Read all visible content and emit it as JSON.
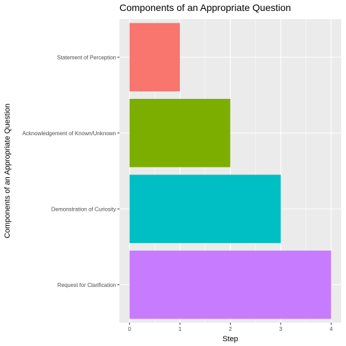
{
  "chart_data": {
    "type": "bar",
    "orientation": "horizontal",
    "title": "Components of an Appropriate Question",
    "xlabel": "Step",
    "ylabel": "Components of an Appropriate Question",
    "categories": [
      "Statement of Perception",
      "Acknowledgement of Known/Unknown",
      "Demonstration of Curiosity",
      "Request for Clarification"
    ],
    "values": [
      1,
      2,
      3,
      4
    ],
    "colors": [
      "#F8766D",
      "#7CAE00",
      "#00BFC4",
      "#C77CFF"
    ],
    "xlim": [
      -0.2,
      4.2
    ],
    "xticks": [
      0,
      1,
      2,
      3,
      4
    ],
    "grid": true,
    "legend": "none",
    "panel_background": "#EBEBEB",
    "grid_color": "#FFFFFF"
  }
}
